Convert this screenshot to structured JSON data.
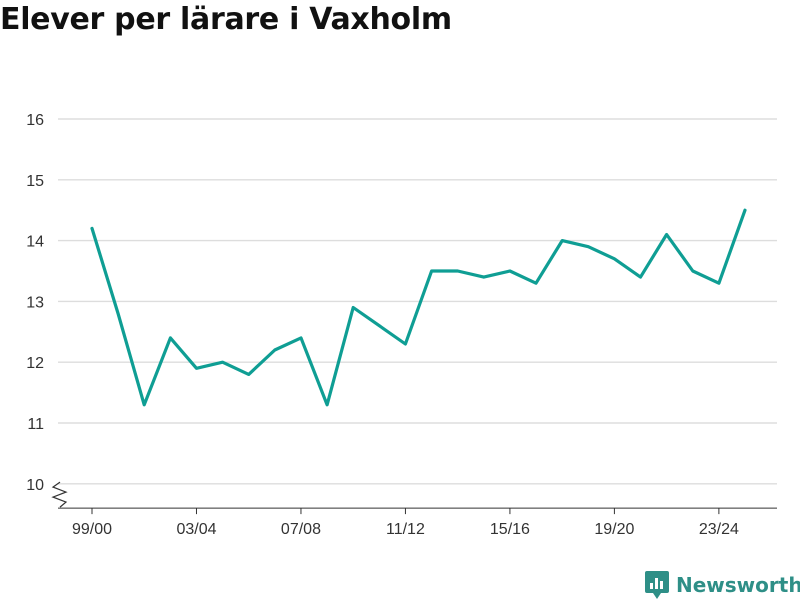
{
  "chart_data": {
    "type": "line",
    "title": "Elever per lärare i Vaxholm",
    "xlabel": "",
    "ylabel": "",
    "x": [
      "99/00",
      "00/01",
      "01/02",
      "02/03",
      "03/04",
      "04/05",
      "05/06",
      "06/07",
      "07/08",
      "08/09",
      "09/10",
      "10/11",
      "11/12",
      "12/13",
      "13/14",
      "14/15",
      "15/16",
      "16/17",
      "17/18",
      "18/19",
      "19/20",
      "20/21",
      "21/22",
      "22/23",
      "23/24",
      "24/25"
    ],
    "series": [
      {
        "values": [
          14.2,
          12.8,
          11.3,
          12.4,
          11.9,
          12.0,
          11.8,
          12.2,
          12.4,
          11.3,
          12.9,
          12.6,
          12.3,
          13.5,
          13.5,
          13.4,
          13.5,
          13.3,
          14.0,
          13.9,
          13.7,
          13.4,
          14.1,
          13.5,
          13.3,
          14.5
        ],
        "color": "#0f9e94"
      }
    ],
    "x_tick_labels": [
      "99/00",
      "03/04",
      "07/08",
      "11/12",
      "15/16",
      "19/20",
      "23/24"
    ],
    "y_ticks": [
      10,
      11,
      12,
      13,
      14,
      15,
      16
    ],
    "ylim": [
      9.6,
      16.2
    ],
    "grid": true,
    "y_axis_break": true,
    "legend": "none"
  },
  "brand": {
    "name": "Newsworthy",
    "icon": "newsworthy-logo-icon",
    "color": "#2e8f87"
  }
}
